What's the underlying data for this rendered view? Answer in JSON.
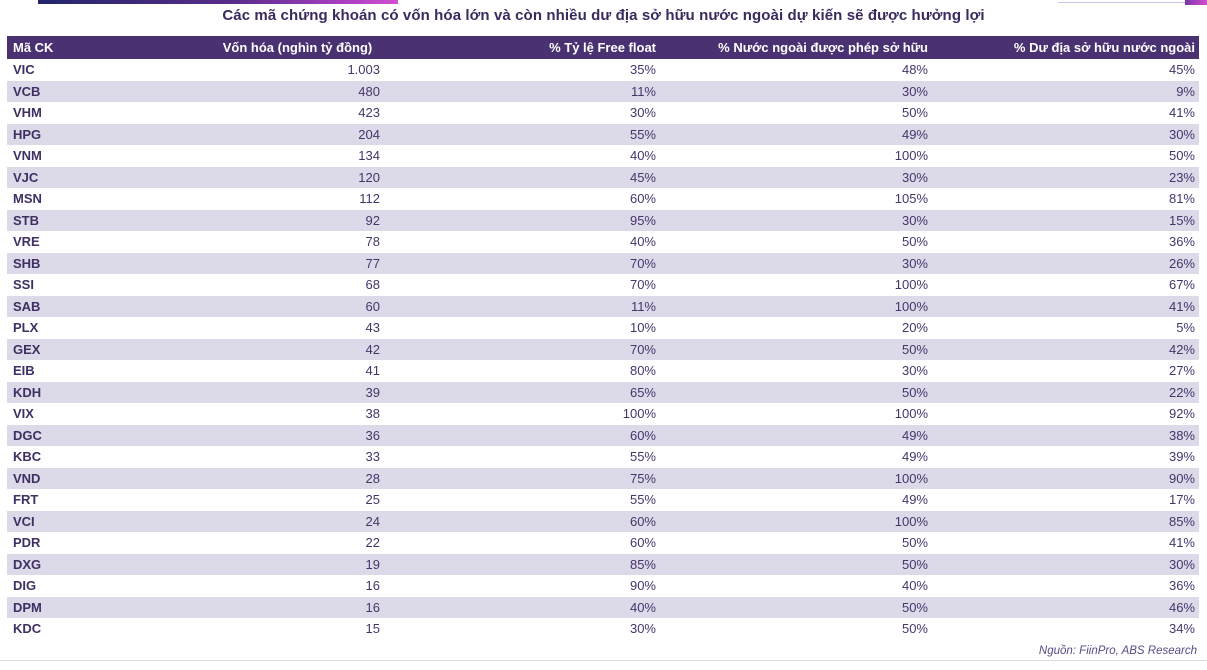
{
  "title": "Các mã chứng khoán có vốn hóa lớn và còn nhiều dư địa sở hữu nước ngoài dự kiến sẽ được hưởng lợi",
  "source": "Nguồn: FiinPro, ABS Research",
  "colors": {
    "header_bg": "#4a3272",
    "header_text": "#ffffff",
    "row_alt_bg": "#dcd9e8",
    "cell_text": "#46356b",
    "title_text": "#3a2a5e",
    "accent_gradient_start": "#23266a",
    "accent_gradient_end": "#d44fd0"
  },
  "chart_data": {
    "type": "table",
    "title": "Các mã chứng khoán có vốn hóa lớn và còn nhiều dư địa sở hữu nước ngoài dự kiến sẽ được hưởng lợi",
    "columns": [
      "Mã CK",
      "Vốn hóa (nghìn tỷ đồng)",
      "% Tỷ lệ Free float",
      "% Nước ngoài được phép sở hữu",
      "% Dư địa sở hữu nước ngoài"
    ],
    "rows": [
      [
        "VIC",
        "1.003",
        "35%",
        "48%",
        "45%"
      ],
      [
        "VCB",
        "480",
        "11%",
        "30%",
        "9%"
      ],
      [
        "VHM",
        "423",
        "30%",
        "50%",
        "41%"
      ],
      [
        "HPG",
        "204",
        "55%",
        "49%",
        "30%"
      ],
      [
        "VNM",
        "134",
        "40%",
        "100%",
        "50%"
      ],
      [
        "VJC",
        "120",
        "45%",
        "30%",
        "23%"
      ],
      [
        "MSN",
        "112",
        "60%",
        "105%",
        "81%"
      ],
      [
        "STB",
        "92",
        "95%",
        "30%",
        "15%"
      ],
      [
        "VRE",
        "78",
        "40%",
        "50%",
        "36%"
      ],
      [
        "SHB",
        "77",
        "70%",
        "30%",
        "26%"
      ],
      [
        "SSI",
        "68",
        "70%",
        "100%",
        "67%"
      ],
      [
        "SAB",
        "60",
        "11%",
        "100%",
        "41%"
      ],
      [
        "PLX",
        "43",
        "10%",
        "20%",
        "5%"
      ],
      [
        "GEX",
        "42",
        "70%",
        "50%",
        "42%"
      ],
      [
        "EIB",
        "41",
        "80%",
        "30%",
        "27%"
      ],
      [
        "KDH",
        "39",
        "65%",
        "50%",
        "22%"
      ],
      [
        "VIX",
        "38",
        "100%",
        "100%",
        "92%"
      ],
      [
        "DGC",
        "36",
        "60%",
        "49%",
        "38%"
      ],
      [
        "KBC",
        "33",
        "55%",
        "49%",
        "39%"
      ],
      [
        "VND",
        "28",
        "75%",
        "100%",
        "90%"
      ],
      [
        "FRT",
        "25",
        "55%",
        "49%",
        "17%"
      ],
      [
        "VCI",
        "24",
        "60%",
        "100%",
        "85%"
      ],
      [
        "PDR",
        "22",
        "60%",
        "50%",
        "41%"
      ],
      [
        "DXG",
        "19",
        "85%",
        "50%",
        "30%"
      ],
      [
        "DIG",
        "16",
        "90%",
        "40%",
        "36%"
      ],
      [
        "DPM",
        "16",
        "40%",
        "50%",
        "46%"
      ],
      [
        "KDC",
        "15",
        "30%",
        "50%",
        "34%"
      ]
    ]
  }
}
